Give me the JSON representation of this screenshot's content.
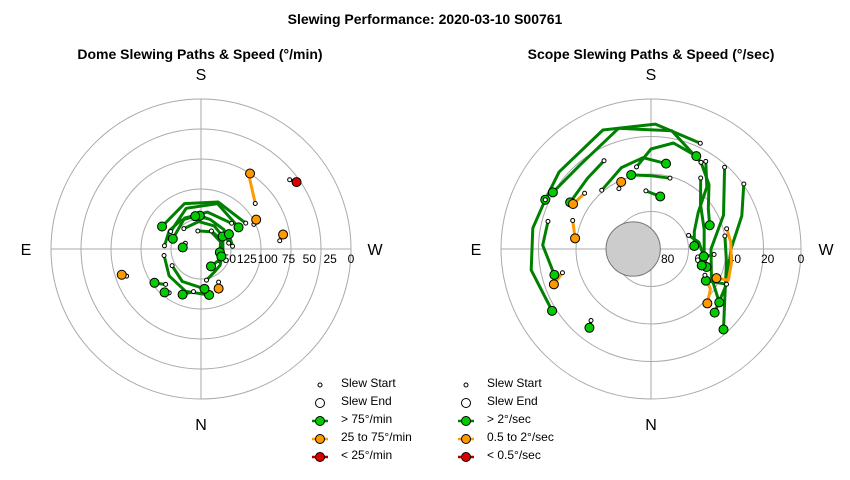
{
  "figure": {
    "title": "Slewing Performance: 2020-03-10 S00761"
  },
  "chart_data": [
    {
      "type": "polar-path",
      "title": "Dome Slewing Paths & Speed (°/min)",
      "compass": {
        "top": "S",
        "bottom": "N",
        "left": "E",
        "right": "W"
      },
      "r_ticks": [
        150,
        125,
        100,
        75,
        50,
        25,
        0
      ],
      "r_range": [
        0,
        180
      ],
      "grid": true,
      "legend": {
        "placement": "bottom-right",
        "start_label": "Slew Start",
        "end_label": "Slew End",
        "categories": [
          {
            "label": "> 75°/min",
            "color": "#00cc00",
            "line_color": "#008000"
          },
          {
            "label": "25 to 75°/min",
            "color": "#ff9900",
            "line_color": "#ff9900"
          },
          {
            "label": "< 25°/min",
            "color": "#dd0000",
            "line_color": "#aa0000"
          }
        ]
      },
      "slews": [
        {
          "cat": 0,
          "path": [
            [
              -12,
              146
            ],
            [
              -40,
              144
            ],
            [
              -72,
              143
            ],
            [
              -92,
              140
            ]
          ]
        },
        {
          "cat": 0,
          "path": [
            [
              -175,
              136
            ],
            [
              -150,
              136
            ],
            [
              -125,
              138
            ],
            [
              -100,
              140
            ]
          ]
        },
        {
          "cat": 0,
          "path": [
            [
              -40,
              132
            ],
            [
              -80,
              135
            ],
            [
              -118,
              138
            ],
            [
              -160,
              144
            ]
          ]
        },
        {
          "cat": 0,
          "path": [
            [
              -30,
              118
            ],
            [
              -70,
              120
            ],
            [
              -110,
              122
            ],
            [
              -150,
              126
            ]
          ]
        },
        {
          "cat": 0,
          "path": [
            [
              -150,
              138
            ],
            [
              -110,
              128
            ],
            [
              -70,
              122
            ],
            [
              -30,
              128
            ]
          ]
        },
        {
          "cat": 0,
          "path": [
            [
              -60,
              155
            ],
            [
              -20,
              152
            ],
            [
              20,
              152
            ],
            [
              60,
              156
            ]
          ]
        },
        {
          "cat": 0,
          "path": [
            [
              170,
              135
            ],
            [
              140,
              130
            ],
            [
              110,
              126
            ],
            [
              80,
              124
            ]
          ]
        },
        {
          "cat": 0,
          "path": [
            [
              150,
              140
            ],
            [
              120,
              135
            ],
            [
              85,
              132
            ]
          ]
        },
        {
          "cat": 0,
          "path": [
            [
              -100,
              158
            ],
            [
              -60,
              156
            ],
            [
              -20,
              155
            ],
            [
              10,
              157
            ]
          ]
        },
        {
          "cat": 0,
          "path": [
            [
              -130,
              148
            ],
            [
              -95,
              147
            ],
            [
              -60,
              148
            ],
            [
              -30,
              150
            ]
          ]
        },
        {
          "cat": 0,
          "path": [
            [
              -5,
              142
            ],
            [
              -28,
              142
            ]
          ]
        },
        {
          "cat": 0,
          "path": [
            [
              100,
              128
            ],
            [
              108,
              124
            ],
            [
              112,
              121
            ]
          ]
        },
        {
          "cat": 0,
          "path": [
            [
              126,
              115
            ],
            [
              130,
              112
            ]
          ]
        },
        {
          "cat": 0,
          "path": [
            [
              135,
              120
            ],
            [
              140,
              115
            ],
            [
              144,
              111
            ]
          ]
        },
        {
          "cat": 0,
          "path": [
            [
              80,
              142
            ],
            [
              60,
              148
            ],
            [
              40,
              150
            ],
            [
              20,
              154
            ]
          ]
        },
        {
          "cat": 0,
          "path": [
            [
              -160,
              160
            ],
            [
              -175,
              158
            ]
          ]
        },
        {
          "cat": 1,
          "path": [
            [
              -25,
              110
            ],
            [
              -28,
              105
            ]
          ]
        },
        {
          "cat": 1,
          "path": [
            [
              -40,
              95
            ],
            [
              -55,
              78
            ],
            [
              -57,
              72
            ]
          ]
        },
        {
          "cat": 1,
          "path": [
            [
              62,
              135
            ],
            [
              66,
              128
            ]
          ]
        },
        {
          "cat": 1,
          "path": [
            [
              160,
              85
            ],
            [
              162,
              80
            ]
          ]
        },
        {
          "cat": 1,
          "path": [
            [
              -6,
              85
            ],
            [
              -10,
              80
            ]
          ]
        },
        {
          "cat": 2,
          "path": [
            [
              -38,
              45
            ],
            [
              -35,
              40
            ]
          ]
        }
      ]
    },
    {
      "type": "polar-path",
      "title": "Scope Slewing Paths & Speed (°/sec)",
      "compass": {
        "top": "S",
        "bottom": "N",
        "left": "E",
        "right": "W"
      },
      "r_ticks": [
        80,
        60,
        40,
        20,
        0
      ],
      "r_range": [
        0,
        90
      ],
      "grid": true,
      "exclusion_zone": {
        "center_alt": 79.3,
        "center_theta": 180,
        "radius_deg": 16.3
      },
      "legend": {
        "placement": "bottom-right",
        "start_label": "Slew Start",
        "end_label": "Slew End",
        "categories": [
          {
            "label": "> 2°/sec",
            "color": "#00cc00",
            "line_color": "#008000"
          },
          {
            "label": "0.5 to 2°/sec",
            "color": "#ff9900",
            "line_color": "#ff9900"
          },
          {
            "label": "< 0.5°/sec",
            "color": "#dd0000",
            "line_color": "#aa0000"
          }
        ]
      },
      "slews": [
        {
          "cat": 0,
          "path": [
            [
              -60,
              30
            ],
            [
              -80,
              18
            ],
            [
              -105,
              15
            ],
            [
              -130,
              24
            ],
            [
              -150,
              22
            ]
          ]
        },
        {
          "cat": 0,
          "path": [
            [
              -35,
              22
            ],
            [
              -20,
              32
            ],
            [
              0,
              42
            ],
            [
              25,
              40
            ],
            [
              45,
              36
            ]
          ]
        },
        {
          "cat": 0,
          "path": [
            [
              -48,
              24
            ],
            [
              -25,
              42
            ],
            [
              0,
              54
            ],
            [
              25,
              50
            ],
            [
              38,
              38
            ]
          ]
        },
        {
          "cat": 0,
          "path": [
            [
              -10,
              45
            ],
            [
              10,
              44
            ],
            [
              35,
              36
            ],
            [
              48,
              25
            ]
          ]
        },
        {
          "cat": 0,
          "path": [
            [
              -55,
              38
            ],
            [
              -42,
              50
            ],
            [
              -20,
              56
            ],
            [
              5,
              58
            ],
            [
              18,
              55
            ]
          ]
        },
        {
          "cat": 0,
          "path": [
            [
              -58,
              28
            ],
            [
              -48,
              40
            ],
            [
              -38,
              54
            ],
            [
              -22,
              62
            ],
            [
              -4,
              64
            ]
          ]
        },
        {
          "cat": 0,
          "path": [
            [
              -65,
              20
            ],
            [
              -88,
              15
            ],
            [
              -112,
              13
            ],
            [
              -140,
              18
            ],
            [
              -155,
              20
            ]
          ]
        },
        {
          "cat": 0,
          "path": [
            [
              -155,
              20
            ],
            [
              -170,
              18
            ],
            [
              -190,
              17
            ],
            [
              -212,
              20
            ]
          ]
        },
        {
          "cat": 0,
          "path": [
            [
              -60,
              30
            ],
            [
              -48,
              38
            ],
            [
              -35,
              48
            ],
            [
              -22,
              52
            ]
          ]
        },
        {
          "cat": 0,
          "path": [
            [
              -100,
              40
            ],
            [
              -90,
              30
            ],
            [
              -78,
              25
            ],
            [
              -64,
              28
            ]
          ]
        },
        {
          "cat": 0,
          "path": [
            [
              -130,
              44
            ],
            [
              -110,
              38
            ],
            [
              -95,
              35
            ],
            [
              -80,
              38
            ]
          ]
        },
        {
          "cat": 0,
          "path": [
            [
              -118,
              30
            ],
            [
              -132,
              33
            ],
            [
              -150,
              34
            ]
          ]
        },
        {
          "cat": 0,
          "path": [
            [
              -20,
              66
            ],
            [
              -8,
              61
            ],
            [
              8,
              58
            ]
          ]
        },
        {
          "cat": 0,
          "path": [
            [
              5,
              52
            ],
            [
              10,
              60
            ],
            [
              18,
              58
            ]
          ]
        },
        {
          "cat": 0,
          "path": [
            [
              25,
              40
            ],
            [
              30,
              52
            ]
          ]
        },
        {
          "cat": 0,
          "path": [
            [
              -75,
              46
            ],
            [
              -90,
              46
            ],
            [
              -105,
              44
            ]
          ]
        },
        {
          "cat": 0,
          "path": [
            [
              -95,
              55
            ],
            [
              -80,
              58
            ]
          ]
        },
        {
          "cat": 0,
          "path": [
            [
              -165,
              26
            ],
            [
              -178,
              25
            ],
            [
              -195,
              30
            ]
          ]
        },
        {
          "cat": 0,
          "path": [
            [
              -230,
              34
            ],
            [
              -232,
              30
            ]
          ]
        },
        {
          "cat": 1,
          "path": [
            [
              -15,
              43
            ],
            [
              -5,
              42
            ],
            [
              10,
              41
            ],
            [
              22,
              40
            ],
            [
              24,
              47
            ]
          ]
        },
        {
          "cat": 1,
          "path": [
            [
              26,
              54
            ],
            [
              34,
              47
            ],
            [
              44,
              43
            ]
          ]
        },
        {
          "cat": 1,
          "path": [
            [
              -140,
              38
            ],
            [
              -150,
              36
            ]
          ]
        },
        {
          "cat": 1,
          "path": [
            [
              -160,
              40
            ],
            [
              -172,
              44
            ]
          ]
        },
        {
          "cat": 1,
          "path": [
            [
              -118,
              49
            ],
            [
              -114,
              46
            ]
          ]
        },
        {
          "cat": 1,
          "path": [
            [
              -195,
              35
            ],
            [
              -200,
              28
            ]
          ]
        }
      ]
    }
  ]
}
